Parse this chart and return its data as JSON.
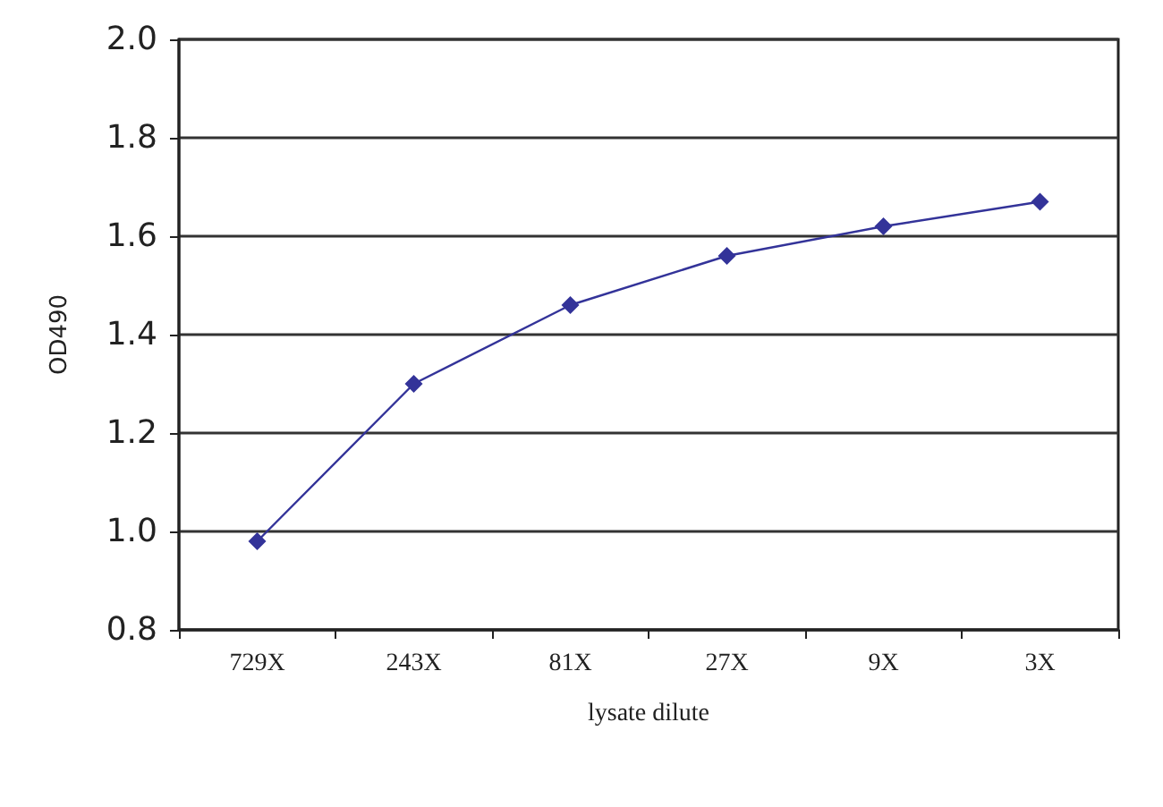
{
  "chart_data": {
    "type": "line",
    "xlabel": "lysate dilute",
    "ylabel": "OD490",
    "categories": [
      "729X",
      "243X",
      "81X",
      "27X",
      "9X",
      "3X"
    ],
    "series": [
      {
        "color": "#333399",
        "values": [
          0.98,
          1.3,
          1.46,
          1.56,
          1.62,
          1.67
        ]
      }
    ],
    "ylim": [
      0.8,
      2.0
    ],
    "yticks": [
      {
        "value": 0.8,
        "label": "0.8"
      },
      {
        "value": 1,
        "label": "1.0"
      },
      {
        "value": 1.2,
        "label": "1.2"
      },
      {
        "value": 1.4,
        "label": "1.4"
      },
      {
        "value": 1.6,
        "label": "1.6"
      },
      {
        "value": 1.8,
        "label": "1.8"
      },
      {
        "value": 2,
        "label": "2.0"
      }
    ],
    "grid": "y",
    "marker": "diamond",
    "line_style": "solid"
  }
}
